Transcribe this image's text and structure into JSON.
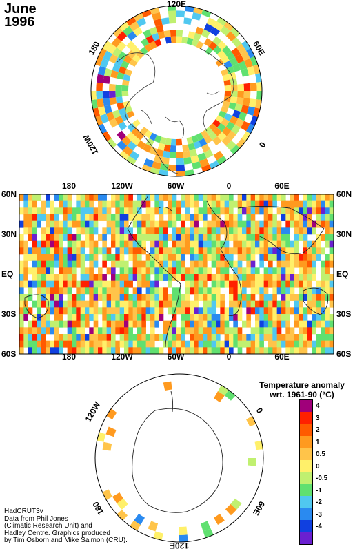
{
  "title": {
    "month": "June",
    "year": "1996"
  },
  "legend": {
    "title_line1": "Temperature anomaly",
    "title_line2": "wrt. 1961-90  (°C)",
    "bins": [
      {
        "label": "4",
        "color": "#a0007a"
      },
      {
        "label": "3",
        "color": "#ff2000"
      },
      {
        "label": "2",
        "color": "#ff5a00"
      },
      {
        "label": "1",
        "color": "#ff9a1f"
      },
      {
        "label": "0.5",
        "color": "#ffc44a"
      },
      {
        "label": "0",
        "color": "#fff06a"
      },
      {
        "label": "-0.5",
        "color": "#c0f070"
      },
      {
        "label": "-1",
        "color": "#60e070"
      },
      {
        "label": "-2",
        "color": "#50c8f0"
      },
      {
        "label": "-3",
        "color": "#2a8af0"
      },
      {
        "label": "-4",
        "color": "#1040e0"
      },
      {
        "label": "",
        "color": "#6a20d0"
      }
    ]
  },
  "north_polar": {
    "lon_labels": [
      "120E",
      "60E",
      "0",
      "120W",
      "180"
    ]
  },
  "world_map": {
    "lon_labels": [
      "180",
      "120W",
      "60W",
      "0",
      "60E"
    ],
    "lat_labels": [
      "60N",
      "30N",
      "EQ",
      "30S",
      "60S"
    ]
  },
  "south_polar": {
    "lon_labels": [
      "120W",
      "0",
      "60E",
      "180",
      "120E"
    ]
  },
  "credits": [
    "HadCRUT3v",
    "Data from Phil Jones",
    "(Climatic Research Unit) and",
    "Hadley Centre.  Graphics produced",
    "by Tim Osborn and Mike Salmon (CRU)."
  ]
}
